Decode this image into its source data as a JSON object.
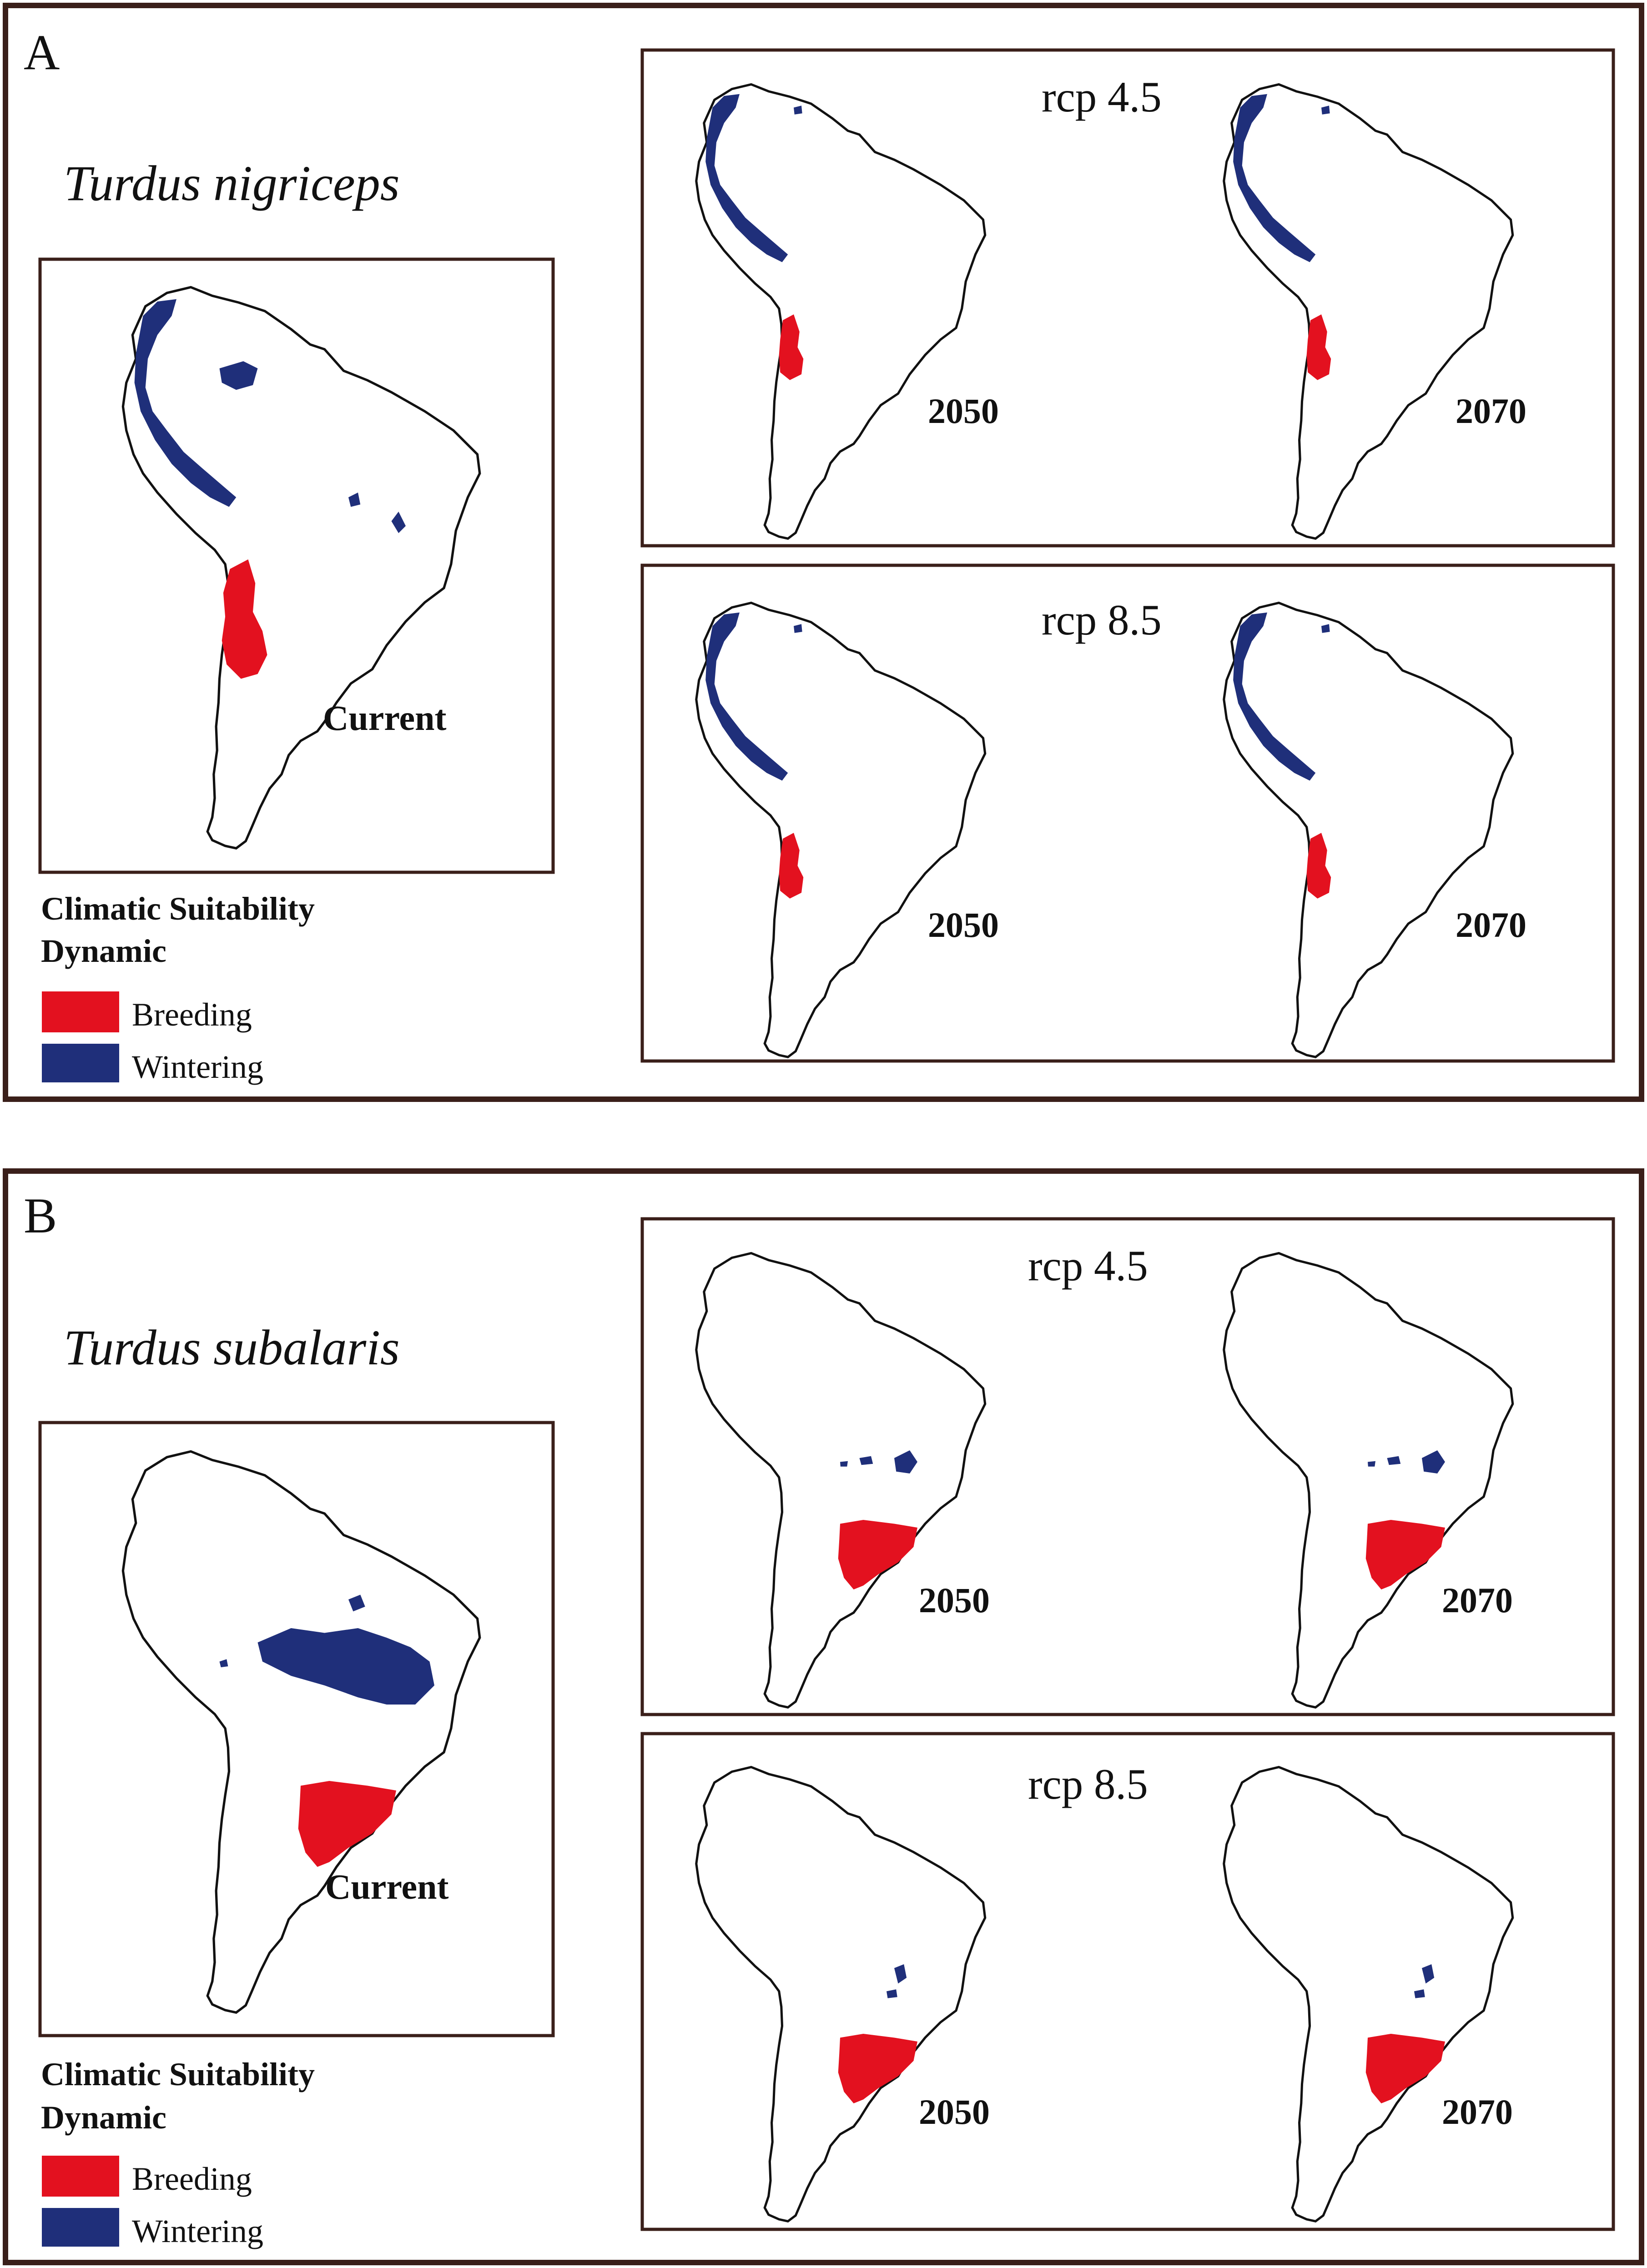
{
  "colors": {
    "breeding": "#e3111f",
    "wintering": "#1f2f7a",
    "frame": "#3a1f1a",
    "land_outline": "#111111"
  },
  "panels": [
    {
      "letter": "A",
      "species": "Turdus nigriceps",
      "current_label": "Current",
      "legend_title_line1": "Climatic Suitability",
      "legend_title_line2": "Dynamic",
      "legend_items": [
        {
          "label": "Breeding",
          "color_key": "breeding"
        },
        {
          "label": "Wintering",
          "color_key": "wintering"
        }
      ],
      "scenarios": [
        {
          "label": "rcp 4.5",
          "years": [
            "2050",
            "2070"
          ]
        },
        {
          "label": "rcp 8.5",
          "years": [
            "2050",
            "2070"
          ]
        }
      ]
    },
    {
      "letter": "B",
      "species": "Turdus subalaris",
      "current_label": "Current",
      "legend_title_line1": "Climatic Suitability",
      "legend_title_line2": "Dynamic",
      "legend_items": [
        {
          "label": "Breeding",
          "color_key": "breeding"
        },
        {
          "label": "Wintering",
          "color_key": "wintering"
        }
      ],
      "scenarios": [
        {
          "label": "rcp 4.5",
          "years": [
            "2050",
            "2070"
          ]
        },
        {
          "label": "rcp 8.5",
          "years": [
            "2050",
            "2070"
          ]
        }
      ]
    }
  ]
}
